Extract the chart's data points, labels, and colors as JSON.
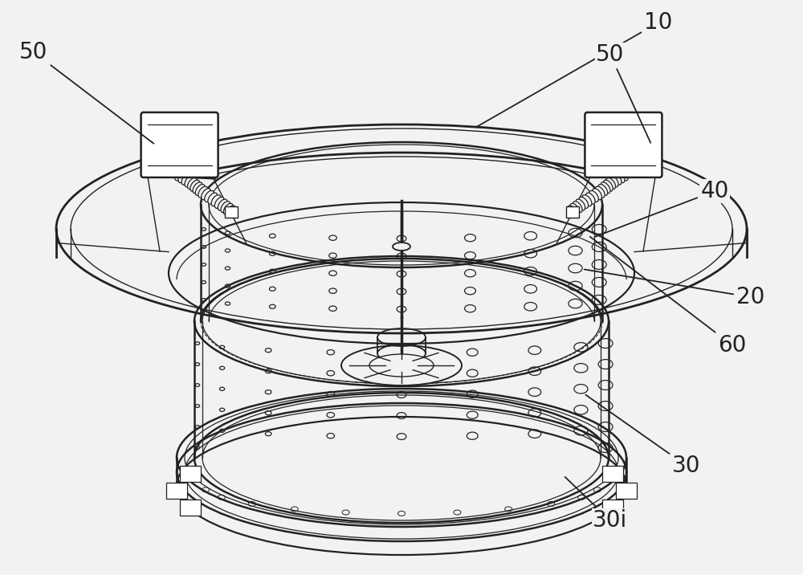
{
  "bg_color": "#f2f2f2",
  "line_color": "#222222",
  "figsize": [
    10.0,
    7.16
  ],
  "dpi": 100,
  "label_fontsize": 20
}
